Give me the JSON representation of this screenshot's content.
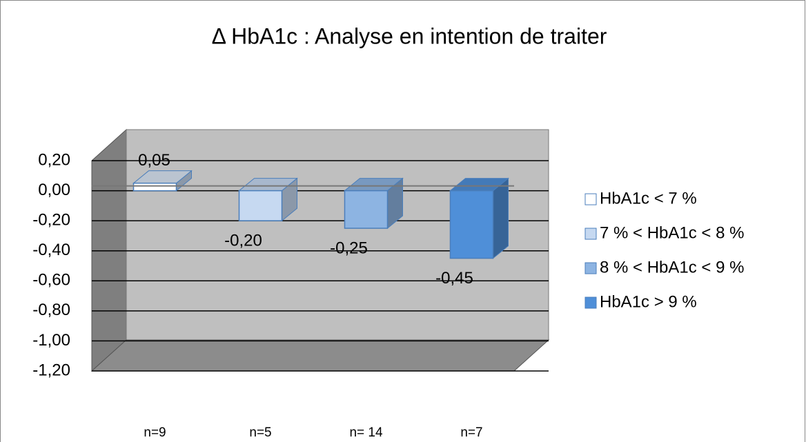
{
  "chart_data": {
    "type": "bar",
    "title": "Δ HbA1c : Analyse en intention de traiter",
    "categories": [
      "n=9",
      "n=5",
      "n= 14",
      "n=7"
    ],
    "series": [
      {
        "name": "HbA1c < 7 %",
        "color": "#ffffff",
        "values": [
          0.05,
          null,
          null,
          null
        ],
        "value_labels": [
          "0,05",
          null,
          null,
          null
        ]
      },
      {
        "name": "7 % < HbA1c < 8 %",
        "color": "#c6d9f1",
        "values": [
          null,
          -0.2,
          null,
          null
        ],
        "value_labels": [
          null,
          "-0,20",
          null,
          null
        ]
      },
      {
        "name": "8 % < HbA1c < 9 %",
        "color": "#8db4e2",
        "values": [
          null,
          null,
          -0.25,
          null
        ],
        "value_labels": [
          null,
          null,
          "-0,25",
          null
        ]
      },
      {
        "name": "HbA1c > 9 %",
        "color": "#4f8fd8",
        "values": [
          null,
          null,
          null,
          -0.45
        ],
        "value_labels": [
          null,
          null,
          null,
          "-0,45"
        ]
      }
    ],
    "ylim": [
      -1.2,
      0.2
    ],
    "yticks": [
      {
        "value": 0.2,
        "label": "0,20"
      },
      {
        "value": 0,
        "label": "0,00"
      },
      {
        "value": -0.2,
        "label": "-0,20"
      },
      {
        "value": -0.4,
        "label": "-0,40"
      },
      {
        "value": -0.6,
        "label": "-0,60"
      },
      {
        "value": -0.8,
        "label": "-0,80"
      },
      {
        "value": -1,
        "label": "-1,00"
      },
      {
        "value": -1.2,
        "label": "-1,20"
      }
    ],
    "grid": true,
    "legend": "right"
  }
}
